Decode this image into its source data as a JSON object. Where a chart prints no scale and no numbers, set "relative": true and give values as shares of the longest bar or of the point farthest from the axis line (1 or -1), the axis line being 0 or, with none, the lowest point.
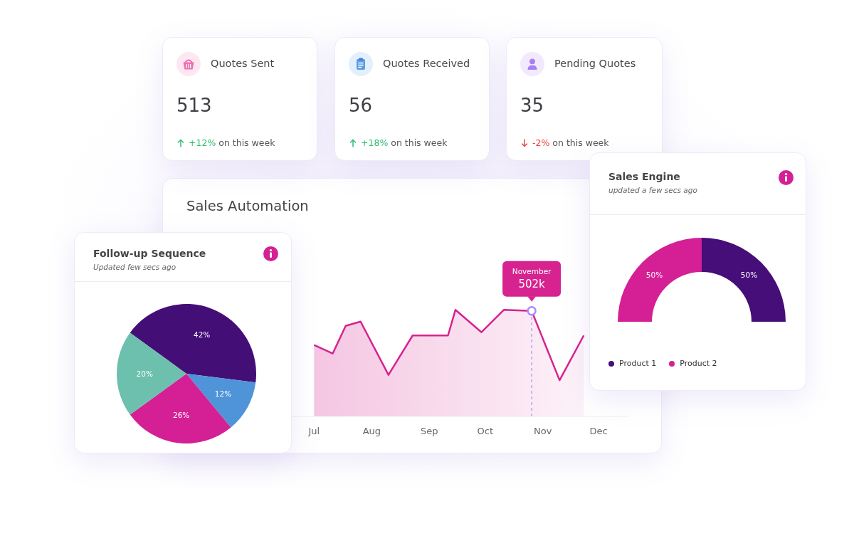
{
  "chart_data": [
    {
      "type": "other",
      "title": "Quotes Sent",
      "annotations": [
        "513",
        "on this week"
      ],
      "values": [
        12
      ],
      "value_labels": [
        "+12%"
      ]
    },
    {
      "type": "other",
      "title": "Quotes Received",
      "annotations": [
        "56",
        "on this week"
      ],
      "values": [
        18
      ],
      "value_labels": [
        "+18%"
      ]
    },
    {
      "type": "other",
      "title": "Pending Quotes",
      "annotations": [
        "35",
        "on this week"
      ],
      "values": [
        -2
      ],
      "value_labels": [
        "-2%"
      ]
    },
    {
      "type": "donut",
      "title": "Sales Engine",
      "subtitle": "updated a few secs ago",
      "categories": [
        "Product 1",
        "Product 2"
      ],
      "values": [
        50,
        50
      ],
      "colors": [
        "#450e78",
        "#d42094"
      ],
      "value_labels": [
        "50%",
        "50%"
      ],
      "legend": "bottom"
    },
    {
      "type": "area",
      "title": "Sales Automation",
      "relative": true,
      "x": [
        "--07-15",
        "--07-25",
        "--08-01",
        "--08-09",
        "--08-24",
        "--09-06",
        "--09-25",
        "--09-29",
        "--10-13",
        "--10-25",
        "--11-09",
        "--11-24",
        "--12-07"
      ],
      "series": [
        {
          "color": "#d6238f",
          "values": [
            0.67,
            0.59,
            0.85,
            0.89,
            0.39,
            0.76,
            0.76,
            1,
            0.79,
            1,
            0.99,
            0.34,
            0.76
          ]
        }
      ],
      "xlim": [
        "--05-07",
        "--12-31"
      ],
      "xticks": [
        {
          "value": "--07-15",
          "label": "Jul"
        },
        {
          "value": "--08-15",
          "label": "Aug"
        },
        {
          "value": "--09-15",
          "label": "Sep"
        },
        {
          "value": "--10-15",
          "label": "Oct"
        },
        {
          "value": "--11-15",
          "label": "Nov"
        },
        {
          "value": "--12-15",
          "label": "Dec"
        }
      ],
      "ref_lines": [
        {
          "axis": "x",
          "value": "--11-09",
          "color": "#a78bfa",
          "line_style": "dashed"
        }
      ],
      "annotations": [
        "November",
        {
          "text": "502k",
          "x": "--11-09",
          "y": 0.99
        }
      ]
    },
    {
      "type": "pie",
      "title": "Follow-up Sequence",
      "subtitle": "Updated few secs ago",
      "categories": [
        null,
        null,
        null,
        null
      ],
      "values": [
        42,
        12,
        26,
        20
      ],
      "colors": [
        "#440e77",
        "#4f94d8",
        "#d42094",
        "#6cc0ad"
      ],
      "value_labels": [
        "42%",
        "12%",
        "26%",
        "20%"
      ]
    }
  ]
}
